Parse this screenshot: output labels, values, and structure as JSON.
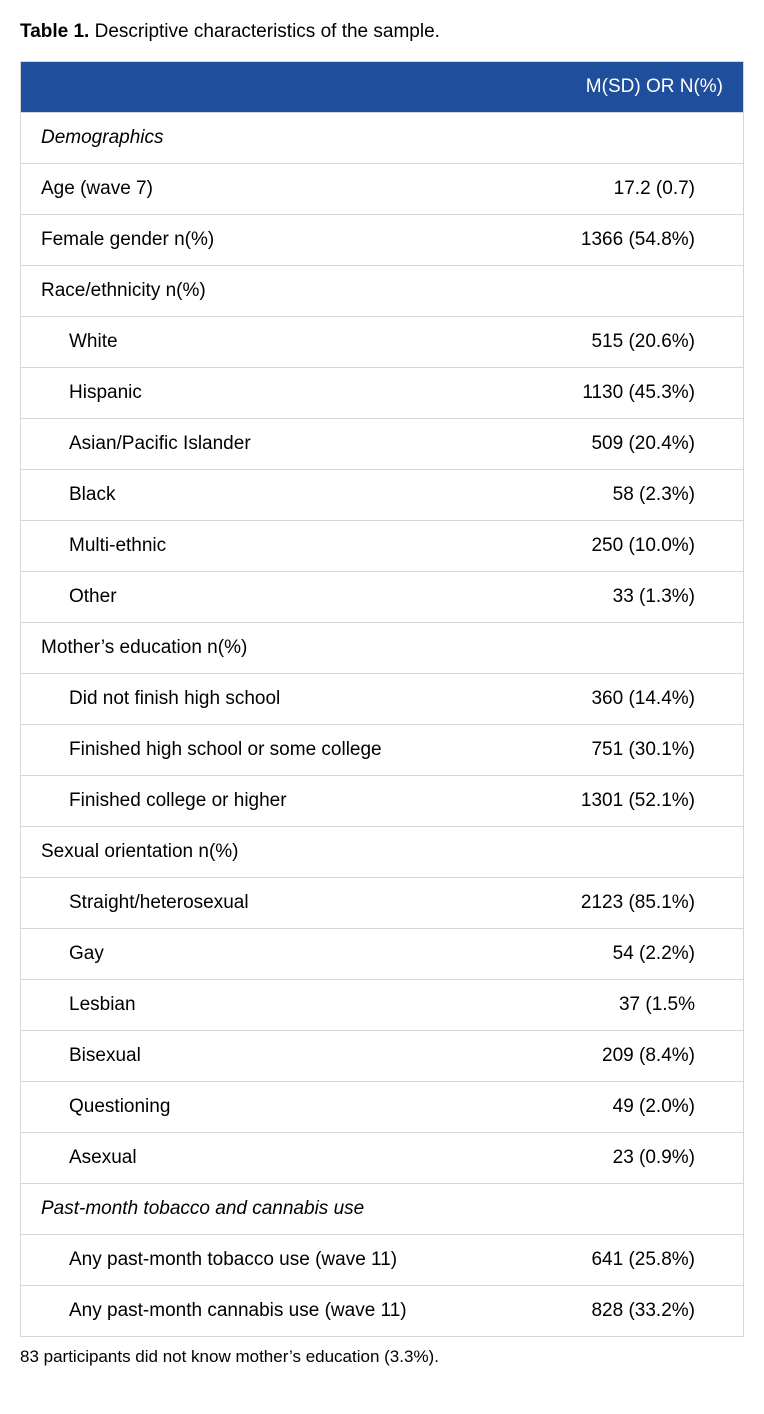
{
  "caption_label": "Table 1.",
  "caption_text": "Descriptive characteristics of the sample.",
  "header_value": "M(SD) OR N(%)",
  "colors": {
    "header_bg": "#1e4e9c",
    "header_text": "#ffffff",
    "border": "#d4d6d8",
    "body_text": "#000000",
    "background": "#ffffff"
  },
  "font_sizes_pt": {
    "caption": 14,
    "body": 14,
    "footnote": 12
  },
  "rows": [
    {
      "label": "Demographics",
      "value": "",
      "indent": false,
      "italic": true
    },
    {
      "label": "Age (wave 7)",
      "value": "17.2 (0.7)",
      "indent": false,
      "italic": false
    },
    {
      "label": "Female gender n(%)",
      "value": "1366 (54.8%)",
      "indent": false,
      "italic": false
    },
    {
      "label": "Race/ethnicity n(%)",
      "value": "",
      "indent": false,
      "italic": false
    },
    {
      "label": "White",
      "value": "515 (20.6%)",
      "indent": true,
      "italic": false
    },
    {
      "label": "Hispanic",
      "value": "1130 (45.3%)",
      "indent": true,
      "italic": false
    },
    {
      "label": "Asian/Pacific Islander",
      "value": "509 (20.4%)",
      "indent": true,
      "italic": false
    },
    {
      "label": "Black",
      "value": "58 (2.3%)",
      "indent": true,
      "italic": false
    },
    {
      "label": "Multi-ethnic",
      "value": "250 (10.0%)",
      "indent": true,
      "italic": false
    },
    {
      "label": "Other",
      "value": "33 (1.3%)",
      "indent": true,
      "italic": false
    },
    {
      "label": "Mother’s education n(%)",
      "value": "",
      "indent": false,
      "italic": false
    },
    {
      "label": "Did not finish high school",
      "value": "360 (14.4%)",
      "indent": true,
      "italic": false
    },
    {
      "label": "Finished high school or some college",
      "value": "751 (30.1%)",
      "indent": true,
      "italic": false
    },
    {
      "label": "Finished college or higher",
      "value": "1301 (52.1%)",
      "indent": true,
      "italic": false
    },
    {
      "label": "Sexual orientation n(%)",
      "value": "",
      "indent": false,
      "italic": false
    },
    {
      "label": "Straight/heterosexual",
      "value": "2123 (85.1%)",
      "indent": true,
      "italic": false
    },
    {
      "label": "Gay",
      "value": "54 (2.2%)",
      "indent": true,
      "italic": false
    },
    {
      "label": "Lesbian",
      "value": "37 (1.5%",
      "indent": true,
      "italic": false
    },
    {
      "label": "Bisexual",
      "value": "209 (8.4%)",
      "indent": true,
      "italic": false
    },
    {
      "label": "Questioning",
      "value": "49 (2.0%)",
      "indent": true,
      "italic": false
    },
    {
      "label": "Asexual",
      "value": "23 (0.9%)",
      "indent": true,
      "italic": false
    },
    {
      "label": "Past-month tobacco and cannabis use",
      "value": "",
      "indent": false,
      "italic": true
    },
    {
      "label": "Any past-month tobacco use (wave 11)",
      "value": "641 (25.8%)",
      "indent": true,
      "italic": false
    },
    {
      "label": "Any past-month cannabis use (wave 11)",
      "value": "828 (33.2%)",
      "indent": true,
      "italic": false
    }
  ],
  "footnote": "83 participants did not know mother’s education (3.3%)."
}
